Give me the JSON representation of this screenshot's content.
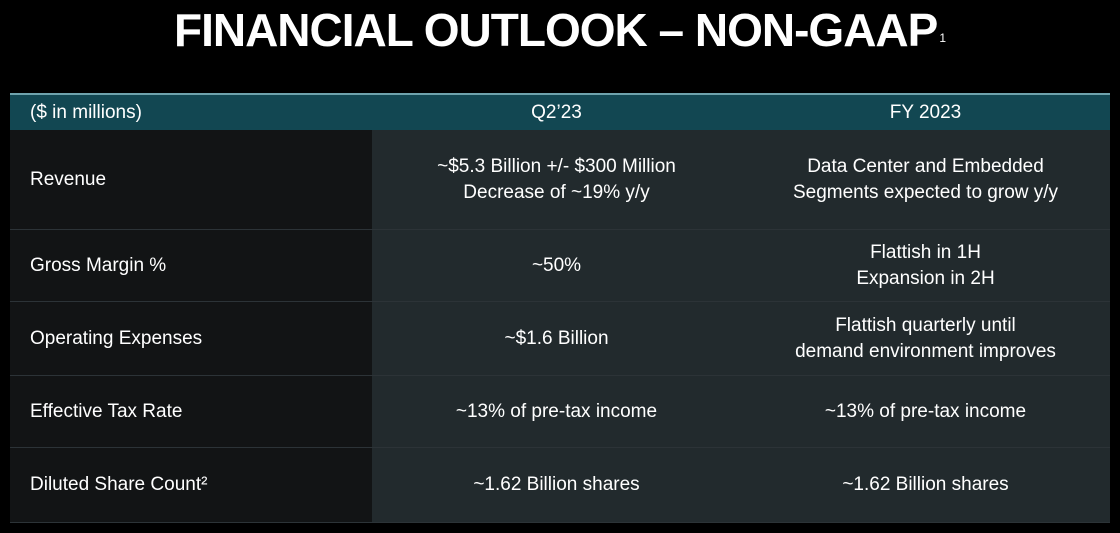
{
  "slide": {
    "title": "FINANCIAL OUTLOOK – NON-GAAP",
    "title_footnote": "1"
  },
  "table": {
    "headers": {
      "label": "($ in millions)",
      "q2": "Q2’23",
      "fy": "FY 2023"
    },
    "rows": [
      {
        "label": "Revenue",
        "q2": [
          "~$5.3 Billion +/- $300 Million",
          "Decrease of ~19% y/y"
        ],
        "fy": [
          "Data Center and Embedded",
          "Segments expected to grow y/y"
        ]
      },
      {
        "label": "Gross Margin %",
        "q2": [
          "~50%"
        ],
        "fy": [
          "Flattish in 1H",
          "Expansion in 2H"
        ]
      },
      {
        "label": "Operating Expenses",
        "q2": [
          "~$1.6 Billion"
        ],
        "fy": [
          "Flattish quarterly until",
          "demand environment improves"
        ]
      },
      {
        "label": "Effective Tax Rate",
        "q2": [
          "~13% of pre-tax income"
        ],
        "fy": [
          "~13% of pre-tax income"
        ]
      },
      {
        "label": "Diluted Share Count²",
        "q2": [
          "~1.62 Billion shares"
        ],
        "fy": [
          "~1.62 Billion shares"
        ]
      }
    ]
  },
  "colors": {
    "background": "#000000",
    "header_bg": "#124752",
    "header_border": "#6fa3ad",
    "label_col_bg": "#121415",
    "value_col_bg": "#222a2d",
    "text": "#ffffff"
  }
}
